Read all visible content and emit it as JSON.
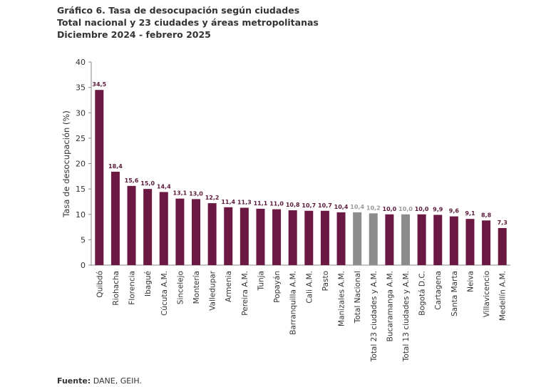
{
  "chart_data": {
    "type": "bar",
    "title": "Gráfico 6. Tasa de desocupación según ciudades",
    "subtitle": "Total nacional y 23 ciudades y áreas metropolitanas",
    "period": "Diciembre 2024 - febrero 2025",
    "xlabel": "",
    "ylabel": "Tasa de desocupación (%)",
    "ylim": [
      0,
      40
    ],
    "yticks": [
      0,
      5,
      10,
      15,
      20,
      25,
      30,
      35,
      40
    ],
    "grid": false,
    "categories": [
      "Quibdó",
      "Riohacha",
      "Florencia",
      "Ibagué",
      "Cúcuta A.M.",
      "Sincelejo",
      "Montería",
      "Valledupar",
      "Armenia",
      "Pereira A.M.",
      "Tunja",
      "Popayán",
      "Barranquilla A.M.",
      "Cali A.M.",
      "Pasto",
      "Manizales A.M.",
      "Total Nacional",
      "Total 23 ciudades y A.M.",
      "Bucaramanga A.M.",
      "Total 13 ciudades y A.M.",
      "Bogotá D.C.",
      "Cartagena",
      "Santa Marta",
      "Neiva",
      "Villavicencio",
      "Medellín A.M."
    ],
    "values": [
      34.5,
      18.4,
      15.6,
      15.0,
      14.4,
      13.1,
      13.0,
      12.2,
      11.4,
      11.3,
      11.1,
      11.0,
      10.8,
      10.7,
      10.7,
      10.4,
      10.4,
      10.2,
      10.0,
      10.0,
      10.0,
      9.9,
      9.6,
      9.1,
      8.8,
      7.3
    ],
    "value_labels": [
      "34,5",
      "18,4",
      "15,6",
      "15,0",
      "14,4",
      "13,1",
      "13,0",
      "12,2",
      "11,4",
      "11,3",
      "11,1",
      "11,0",
      "10,8",
      "10,7",
      "10,7",
      "10,4",
      "10,4",
      "10,2",
      "10,0",
      "10,0",
      "10,0",
      "9,9",
      "9,6",
      "9,1",
      "8,8",
      "7,3"
    ],
    "highlighted": [
      "Total Nacional",
      "Total 23 ciudades y A.M.",
      "Total 13 ciudades y A.M."
    ],
    "colors": {
      "city": "#6b1942",
      "total": "#8c8c8c",
      "total_label": "#9a9a9a"
    }
  },
  "source": {
    "label": "Fuente:",
    "text": " DANE, GEIH."
  }
}
